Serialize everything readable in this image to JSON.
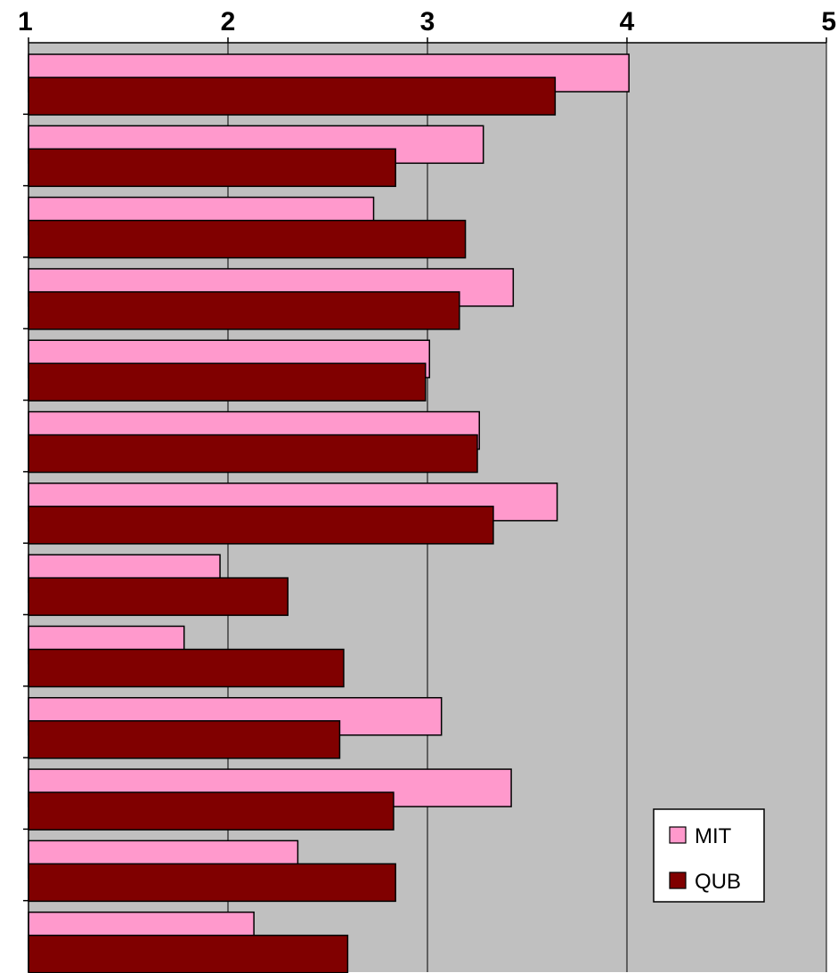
{
  "chart_data": {
    "type": "bar",
    "orientation": "horizontal",
    "xlim": [
      1,
      5
    ],
    "x_ticks": [
      "1",
      "2",
      "3",
      "4",
      "5"
    ],
    "x_axis_position": "top",
    "grid": true,
    "legend_position": "bottom-right",
    "series": [
      {
        "name": "MIT",
        "color": "#ff99cc",
        "values": [
          4.01,
          3.28,
          2.73,
          3.43,
          3.01,
          3.26,
          3.65,
          1.96,
          1.78,
          3.07,
          3.42,
          2.35,
          2.13
        ]
      },
      {
        "name": "QUB",
        "color": "#800000",
        "values": [
          3.64,
          2.84,
          3.19,
          3.16,
          2.99,
          3.25,
          3.33,
          2.3,
          2.58,
          2.56,
          2.83,
          2.84,
          2.6
        ]
      }
    ],
    "plot_background": "#c0c0c0"
  }
}
